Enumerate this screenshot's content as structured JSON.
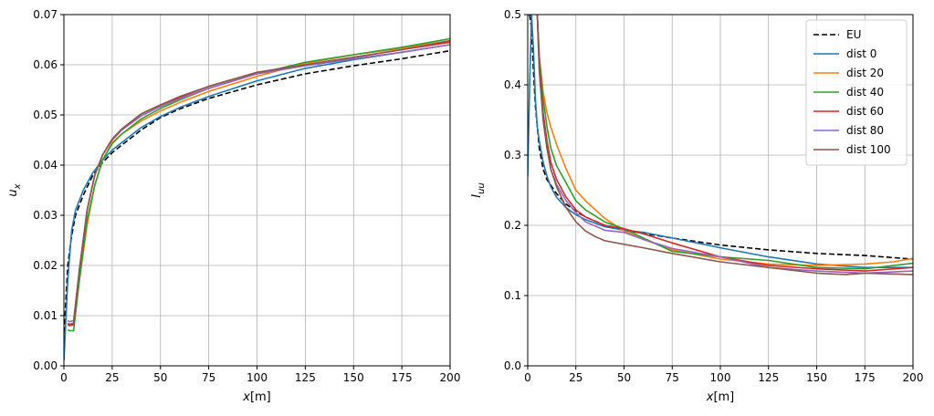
{
  "chart_data": [
    {
      "type": "line",
      "title": "",
      "xlabel": "x[m]",
      "ylabel": "u_x",
      "xlim": [
        0,
        200
      ],
      "ylim": [
        0,
        0.07
      ],
      "xticks": [
        0,
        25,
        50,
        75,
        100,
        125,
        150,
        175,
        200
      ],
      "yticks": [
        0.0,
        0.01,
        0.02,
        0.03,
        0.04,
        0.05,
        0.06,
        0.07
      ],
      "xtick_labels": [
        "0",
        "25",
        "50",
        "75",
        "100",
        "125",
        "150",
        "175",
        "200"
      ],
      "ytick_labels": [
        "0.00",
        "0.01",
        "0.02",
        "0.03",
        "0.04",
        "0.05",
        "0.06",
        "0.07"
      ],
      "grid": true,
      "series": [
        {
          "name": "EU",
          "color": "#000000",
          "dash": true,
          "x": [
            0,
            1,
            2,
            4,
            6,
            10,
            15,
            20,
            25,
            30,
            40,
            50,
            60,
            75,
            100,
            125,
            150,
            175,
            200
          ],
          "y": [
            0.005,
            0.013,
            0.02,
            0.026,
            0.03,
            0.034,
            0.038,
            0.0405,
            0.0425,
            0.044,
            0.047,
            0.0495,
            0.0512,
            0.0533,
            0.056,
            0.0582,
            0.0598,
            0.0612,
            0.0628
          ]
        },
        {
          "name": "dist 0",
          "color": "#1f77b4",
          "dash": false,
          "x": [
            0,
            1,
            2,
            4,
            6,
            10,
            15,
            20,
            25,
            30,
            40,
            50,
            60,
            75,
            100,
            125,
            150,
            175,
            200
          ],
          "y": [
            0.001,
            0.009,
            0.017,
            0.027,
            0.031,
            0.035,
            0.0385,
            0.041,
            0.043,
            0.0445,
            0.0475,
            0.0497,
            0.0515,
            0.0537,
            0.0568,
            0.0593,
            0.061,
            0.0625,
            0.064
          ]
        },
        {
          "name": "dist 20",
          "color": "#ff7f0e",
          "dash": false,
          "x": [
            2,
            3,
            5,
            8,
            12,
            16,
            20,
            25,
            30,
            40,
            50,
            60,
            75,
            100,
            125,
            150,
            175,
            200
          ],
          "y": [
            0.0082,
            0.0082,
            0.0085,
            0.017,
            0.028,
            0.036,
            0.041,
            0.0445,
            0.0462,
            0.0488,
            0.0508,
            0.0525,
            0.0547,
            0.0577,
            0.0603,
            0.062,
            0.0633,
            0.0648
          ]
        },
        {
          "name": "dist 40",
          "color": "#2ca02c",
          "dash": false,
          "x": [
            2,
            3,
            5,
            8,
            12,
            16,
            20,
            25,
            30,
            40,
            50,
            60,
            75,
            100,
            125,
            150,
            175,
            200
          ],
          "y": [
            0.0072,
            0.007,
            0.007,
            0.017,
            0.029,
            0.036,
            0.041,
            0.0443,
            0.0462,
            0.0492,
            0.0513,
            0.053,
            0.0553,
            0.0582,
            0.0605,
            0.062,
            0.0635,
            0.0652
          ]
        },
        {
          "name": "dist 60",
          "color": "#d62728",
          "dash": false,
          "x": [
            2,
            3,
            5,
            8,
            12,
            16,
            20,
            25,
            30,
            40,
            50,
            60,
            75,
            100,
            125,
            150,
            175,
            200
          ],
          "y": [
            0.0082,
            0.008,
            0.0082,
            0.019,
            0.031,
            0.038,
            0.042,
            0.0452,
            0.0472,
            0.0502,
            0.052,
            0.0535,
            0.0557,
            0.0585,
            0.06,
            0.0615,
            0.063,
            0.0645
          ]
        },
        {
          "name": "dist 80",
          "color": "#9467bd",
          "dash": false,
          "x": [
            2,
            3,
            5,
            8,
            12,
            16,
            20,
            25,
            30,
            40,
            50,
            60,
            75,
            100,
            125,
            150,
            175,
            200
          ],
          "y": [
            0.009,
            0.0088,
            0.009,
            0.019,
            0.031,
            0.038,
            0.042,
            0.045,
            0.047,
            0.0498,
            0.0517,
            0.0532,
            0.0553,
            0.0582,
            0.0598,
            0.0612,
            0.0625,
            0.064
          ]
        },
        {
          "name": "dist 100",
          "color": "#8c564b",
          "dash": false,
          "x": [
            2,
            3,
            5,
            8,
            12,
            16,
            20,
            25,
            30,
            40,
            50,
            60,
            75,
            100,
            125,
            150,
            175,
            200
          ],
          "y": [
            0.0085,
            0.0083,
            0.0085,
            0.019,
            0.031,
            0.038,
            0.042,
            0.0452,
            0.0472,
            0.0502,
            0.052,
            0.0537,
            0.0557,
            0.0585,
            0.06,
            0.0615,
            0.063,
            0.0648
          ]
        }
      ]
    },
    {
      "type": "line",
      "title": "",
      "xlabel": "x[m]",
      "ylabel": "I_uu",
      "xlim": [
        0,
        200
      ],
      "ylim": [
        0,
        0.5
      ],
      "xticks": [
        0,
        25,
        50,
        75,
        100,
        125,
        150,
        175,
        200
      ],
      "yticks": [
        0.0,
        0.1,
        0.2,
        0.3,
        0.4,
        0.5
      ],
      "xtick_labels": [
        "0",
        "25",
        "50",
        "75",
        "100",
        "125",
        "150",
        "175",
        "200"
      ],
      "ytick_labels": [
        "0.0",
        "0.1",
        "0.2",
        "0.3",
        "0.4",
        "0.5"
      ],
      "grid": true,
      "legend": "top-right",
      "series": [
        {
          "name": "EU",
          "color": "#000000",
          "dash": true,
          "x": [
            1,
            2,
            3,
            4,
            6,
            8,
            10,
            15,
            20,
            25,
            30,
            40,
            50,
            75,
            100,
            125,
            150,
            175,
            200
          ],
          "y": [
            0.5,
            0.48,
            0.42,
            0.37,
            0.31,
            0.28,
            0.265,
            0.245,
            0.23,
            0.22,
            0.212,
            0.2,
            0.193,
            0.182,
            0.172,
            0.165,
            0.16,
            0.157,
            0.152
          ]
        },
        {
          "name": "dist 0",
          "color": "#1f77b4",
          "dash": false,
          "x": [
            0,
            1,
            2,
            3,
            4,
            5,
            6,
            8,
            10,
            12,
            15,
            20,
            25,
            30,
            40,
            50,
            60,
            75,
            100,
            125,
            150,
            175,
            200
          ],
          "y": [
            0.27,
            0.4,
            0.5,
            0.45,
            0.38,
            0.34,
            0.32,
            0.29,
            0.27,
            0.255,
            0.24,
            0.225,
            0.215,
            0.208,
            0.198,
            0.193,
            0.19,
            0.182,
            0.168,
            0.155,
            0.145,
            0.14,
            0.14
          ]
        },
        {
          "name": "dist 20",
          "color": "#ff7f0e",
          "dash": false,
          "x": [
            5,
            6,
            8,
            10,
            12,
            15,
            20,
            25,
            30,
            40,
            50,
            60,
            75,
            100,
            125,
            150,
            175,
            190,
            200
          ],
          "y": [
            0.5,
            0.44,
            0.39,
            0.36,
            0.34,
            0.315,
            0.28,
            0.25,
            0.235,
            0.21,
            0.192,
            0.18,
            0.165,
            0.152,
            0.145,
            0.143,
            0.145,
            0.148,
            0.153
          ]
        },
        {
          "name": "dist 40",
          "color": "#2ca02c",
          "dash": false,
          "x": [
            5,
            6,
            8,
            10,
            12,
            15,
            20,
            25,
            30,
            40,
            50,
            60,
            75,
            100,
            125,
            150,
            175,
            200
          ],
          "y": [
            0.5,
            0.44,
            0.38,
            0.34,
            0.31,
            0.285,
            0.26,
            0.235,
            0.222,
            0.205,
            0.195,
            0.182,
            0.163,
            0.155,
            0.15,
            0.14,
            0.138,
            0.146
          ]
        },
        {
          "name": "dist 60",
          "color": "#d62728",
          "dash": false,
          "x": [
            5,
            6,
            8,
            10,
            12,
            15,
            20,
            25,
            30,
            40,
            50,
            60,
            75,
            100,
            125,
            150,
            175,
            200
          ],
          "y": [
            0.5,
            0.43,
            0.36,
            0.32,
            0.29,
            0.265,
            0.24,
            0.222,
            0.212,
            0.2,
            0.195,
            0.188,
            0.175,
            0.155,
            0.143,
            0.138,
            0.135,
            0.14
          ]
        },
        {
          "name": "dist 80",
          "color": "#9467bd",
          "dash": false,
          "x": [
            5,
            6,
            8,
            10,
            12,
            15,
            20,
            25,
            30,
            40,
            50,
            60,
            75,
            100,
            125,
            150,
            175,
            200
          ],
          "y": [
            0.5,
            0.42,
            0.35,
            0.31,
            0.28,
            0.258,
            0.235,
            0.218,
            0.205,
            0.193,
            0.19,
            0.18,
            0.167,
            0.155,
            0.14,
            0.135,
            0.132,
            0.135
          ]
        },
        {
          "name": "dist 100",
          "color": "#8c564b",
          "dash": false,
          "x": [
            5,
            6,
            8,
            10,
            12,
            15,
            20,
            25,
            30,
            35,
            40,
            50,
            60,
            75,
            100,
            125,
            150,
            165,
            175,
            200
          ],
          "y": [
            0.5,
            0.42,
            0.35,
            0.31,
            0.28,
            0.255,
            0.225,
            0.205,
            0.192,
            0.184,
            0.178,
            0.173,
            0.168,
            0.16,
            0.148,
            0.14,
            0.132,
            0.13,
            0.132,
            0.13
          ]
        }
      ]
    }
  ]
}
